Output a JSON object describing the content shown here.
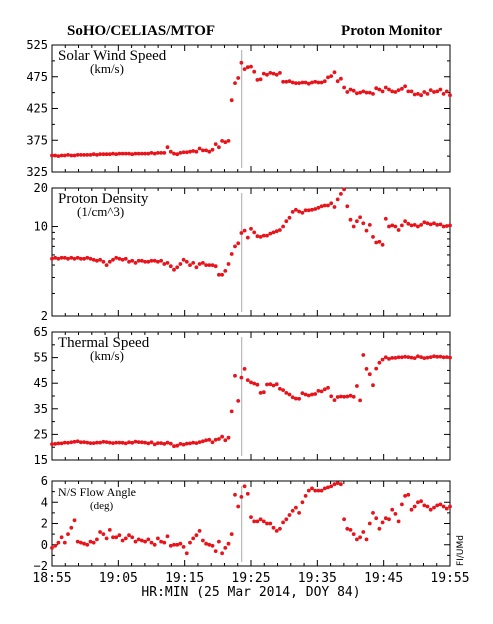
{
  "header": {
    "left_title": "SoHO/CELIAS/MTOF",
    "right_title": "Proton Monitor"
  },
  "side_note": "FI/UMd",
  "colors": {
    "points": "#e8141c",
    "axes": "#000000",
    "event_line": "#aaaaaa"
  },
  "chart_data": [
    {
      "type": "scatter",
      "title": "Solar Wind Speed",
      "unit": "(km/s)",
      "ylim": [
        325,
        525
      ],
      "yticks": [
        "525",
        "475",
        "425",
        "375",
        "325"
      ],
      "x": [
        0,
        1,
        2,
        3,
        4,
        5,
        6,
        7,
        8,
        9,
        10,
        11,
        12,
        13,
        14,
        15,
        16,
        17,
        18,
        19,
        20,
        21,
        22,
        23,
        24,
        25,
        26,
        27,
        28,
        29,
        30,
        31,
        32,
        33,
        34,
        35,
        36,
        37,
        38,
        39,
        40,
        41,
        42,
        43,
        44,
        45,
        46,
        47,
        48,
        49,
        50,
        51,
        52,
        53,
        54,
        55,
        56,
        57,
        58,
        59,
        60,
        61,
        62,
        63,
        64,
        65,
        66,
        67,
        68,
        69,
        70,
        71,
        72,
        73,
        74,
        75,
        76,
        77,
        78,
        79,
        80,
        81,
        82,
        83,
        84,
        85,
        86,
        87,
        88,
        89,
        90,
        91,
        92,
        93,
        94,
        95,
        96,
        97,
        98,
        99,
        100,
        101,
        102,
        103,
        104,
        105,
        106,
        107,
        108,
        109,
        110,
        111,
        112,
        113,
        114,
        115,
        116,
        117,
        118,
        119,
        120,
        121,
        122,
        123,
        124
      ],
      "values": [
        351,
        351,
        350,
        351,
        351,
        352,
        351,
        351,
        352,
        352,
        352,
        352,
        352,
        353,
        352,
        353,
        353,
        353,
        353,
        354,
        353,
        354,
        354,
        354,
        354,
        353,
        354,
        354,
        354,
        354,
        354,
        355,
        354,
        355,
        355,
        355,
        364,
        357,
        354,
        353,
        355,
        356,
        356,
        357,
        358,
        357,
        362,
        359,
        359,
        357,
        360,
        369,
        364,
        374,
        372,
        374,
        438,
        465,
        473,
        497,
        487,
        490,
        491,
        483,
        470,
        471,
        480,
        478,
        481,
        480,
        478,
        481,
        467,
        467,
        468,
        466,
        465,
        465,
        466,
        466,
        464,
        466,
        467,
        466,
        466,
        468,
        474,
        476,
        482,
        468,
        472,
        458,
        451,
        455,
        453,
        449,
        450,
        452,
        450,
        450,
        448,
        457,
        455,
        452,
        458,
        455,
        452,
        451,
        454,
        456,
        460,
        452,
        452,
        447,
        448,
        446,
        451,
        448,
        454,
        451,
        452,
        455,
        448,
        452,
        446
      ],
      "grid": false,
      "xlabel": "",
      "ylabel": ""
    },
    {
      "type": "scatter",
      "title": "Proton Density",
      "unit": "(1/cm^3)",
      "scale": "log",
      "ylim": [
        2,
        20
      ],
      "yticks": [
        "20",
        "10",
        "2"
      ],
      "x": [
        0,
        1,
        2,
        3,
        4,
        5,
        6,
        7,
        8,
        9,
        10,
        11,
        12,
        13,
        14,
        15,
        16,
        17,
        18,
        19,
        20,
        21,
        22,
        23,
        24,
        25,
        26,
        27,
        28,
        29,
        30,
        31,
        32,
        33,
        34,
        35,
        36,
        37,
        38,
        39,
        40,
        41,
        42,
        43,
        44,
        45,
        46,
        47,
        48,
        49,
        50,
        51,
        52,
        53,
        54,
        55,
        56,
        57,
        58,
        59,
        60,
        61,
        62,
        63,
        64,
        65,
        66,
        67,
        68,
        69,
        70,
        71,
        72,
        73,
        74,
        75,
        76,
        77,
        78,
        79,
        80,
        81,
        82,
        83,
        84,
        85,
        86,
        87,
        88,
        89,
        90,
        91,
        92,
        93,
        94,
        95,
        96,
        97,
        98,
        99,
        100,
        101,
        102,
        103,
        104,
        105,
        106,
        107,
        108,
        109,
        110,
        111,
        112,
        113,
        114,
        115,
        116,
        117,
        118,
        119,
        120,
        121,
        122,
        123,
        124
      ],
      "values": [
        5.6,
        5.7,
        5.6,
        5.7,
        5.7,
        5.6,
        5.7,
        5.6,
        5.7,
        5.6,
        5.6,
        5.7,
        5.6,
        5.5,
        5.4,
        5.5,
        5.3,
        5.0,
        5.3,
        5.5,
        5.7,
        5.6,
        5.5,
        5.6,
        5.3,
        5.4,
        5.2,
        5.4,
        5.4,
        5.3,
        5.3,
        5.4,
        5.4,
        5.3,
        5.4,
        5.1,
        5.2,
        4.9,
        4.6,
        4.8,
        5.1,
        5.5,
        5.3,
        5.0,
        5.2,
        4.8,
        5.1,
        5.2,
        5.0,
        5.0,
        5.0,
        4.9,
        4.2,
        4.2,
        4.5,
        5.1,
        6.1,
        7.0,
        7.4,
        8.9,
        9.3,
        8.2,
        9.6,
        9.0,
        8.4,
        8.3,
        8.5,
        8.5,
        8.8,
        9.0,
        9.2,
        9.4,
        10.0,
        11.0,
        11.7,
        13.0,
        13.5,
        13.1,
        12.8,
        13.4,
        13.4,
        13.5,
        13.7,
        14.0,
        14.4,
        14.6,
        14.6,
        15.2,
        14.2,
        16.3,
        18.0,
        19.5,
        14.4,
        11.3,
        10.0,
        11.0,
        11.8,
        10.6,
        9.3,
        10.3,
        8.3,
        7.5,
        7.6,
        7.2,
        11.5,
        10.0,
        10.2,
        10.0,
        9.4,
        10.2,
        11.0,
        10.5,
        10.2,
        10.3,
        10.0,
        10.3,
        10.8,
        10.6,
        10.4,
        10.6,
        10.3,
        10.4,
        10.0,
        10.1,
        10.2
      ],
      "grid": false,
      "xlabel": "",
      "ylabel": ""
    },
    {
      "type": "scatter",
      "title": "Thermal Speed",
      "unit": "(km/s)",
      "ylim": [
        15,
        65
      ],
      "yticks": [
        "65",
        "55",
        "45",
        "35",
        "25",
        "15"
      ],
      "x": [
        0,
        1,
        2,
        3,
        4,
        5,
        6,
        7,
        8,
        9,
        10,
        11,
        12,
        13,
        14,
        15,
        16,
        17,
        18,
        19,
        20,
        21,
        22,
        23,
        24,
        25,
        26,
        27,
        28,
        29,
        30,
        31,
        32,
        33,
        34,
        35,
        36,
        37,
        38,
        39,
        40,
        41,
        42,
        43,
        44,
        45,
        46,
        47,
        48,
        49,
        50,
        51,
        52,
        53,
        54,
        55,
        56,
        57,
        58,
        59,
        60,
        61,
        62,
        63,
        64,
        65,
        66,
        67,
        68,
        69,
        70,
        71,
        72,
        73,
        74,
        75,
        76,
        77,
        78,
        79,
        80,
        81,
        82,
        83,
        84,
        85,
        86,
        87,
        88,
        89,
        90,
        91,
        92,
        93,
        94,
        95,
        96,
        97,
        98,
        99,
        100,
        101,
        102,
        103,
        104,
        105,
        106,
        107,
        108,
        109,
        110,
        111,
        112,
        113,
        114,
        115,
        116,
        117,
        118,
        119,
        120,
        121,
        122,
        123,
        124
      ],
      "values": [
        21.2,
        21.3,
        21.5,
        21.5,
        21.8,
        21.7,
        21.9,
        22.1,
        22.3,
        21.9,
        22.0,
        21.8,
        21.6,
        21.6,
        21.8,
        21.8,
        22.1,
        22.0,
        21.8,
        21.6,
        21.8,
        21.8,
        21.7,
        21.5,
        21.9,
        21.7,
        22.2,
        22.0,
        21.9,
        21.8,
        21.5,
        21.9,
        21.1,
        21.6,
        21.6,
        21.3,
        21.8,
        21.4,
        20.4,
        20.6,
        21.3,
        21.0,
        21.4,
        21.5,
        21.8,
        21.6,
        22.0,
        22.3,
        22.7,
        22.9,
        21.9,
        22.9,
        23.2,
        24.1,
        22.7,
        23.7,
        34.0,
        47.9,
        38.1,
        47.2,
        50.6,
        46.2,
        45.3,
        44.9,
        44.4,
        41.2,
        41.5,
        44.5,
        44.6,
        44.1,
        44.6,
        42.8,
        42.3,
        41.2,
        40.6,
        39.5,
        39.0,
        38.9,
        41.1,
        40.6,
        40.2,
        40.6,
        40.8,
        42.0,
        41.8,
        42.6,
        43.2,
        39.9,
        38.4,
        39.6,
        39.8,
        39.7,
        39.8,
        40.1,
        39.7,
        43.9,
        38.3,
        56.0,
        50.6,
        48.5,
        44.2,
        50.7,
        53.0,
        54.2,
        55.1,
        54.5,
        54.9,
        54.9,
        55.1,
        55.1,
        55.3,
        55.2,
        55.0,
        54.8,
        55.5,
        55.2,
        54.8,
        55.0,
        55.2,
        55.5,
        55.3,
        55.4,
        55.1,
        55.2,
        55.0
      ],
      "grid": false,
      "xlabel": "",
      "ylabel": ""
    },
    {
      "type": "scatter",
      "title": "N/S Flow Angle",
      "unit": "(deg)",
      "ylim": [
        -2,
        6
      ],
      "yticks": [
        "6",
        "4",
        "2",
        "0",
        "−2"
      ],
      "xticks": [
        "18:55",
        "19:05",
        "19:15",
        "19:25",
        "19:35",
        "19:45",
        "19:55"
      ],
      "xlabel": "HR:MIN (25 Mar 2014, DOY 84)",
      "x": [
        0,
        1,
        2,
        3,
        4,
        5,
        6,
        7,
        8,
        9,
        10,
        11,
        12,
        13,
        14,
        15,
        16,
        17,
        18,
        19,
        20,
        21,
        22,
        23,
        24,
        25,
        26,
        27,
        28,
        29,
        30,
        31,
        32,
        33,
        34,
        35,
        36,
        37,
        38,
        39,
        40,
        41,
        42,
        43,
        44,
        45,
        46,
        47,
        48,
        49,
        50,
        51,
        52,
        53,
        54,
        55,
        56,
        57,
        58,
        59,
        60,
        61,
        62,
        63,
        64,
        65,
        66,
        67,
        68,
        69,
        70,
        71,
        72,
        73,
        74,
        75,
        76,
        77,
        78,
        79,
        80,
        81,
        82,
        83,
        84,
        85,
        86,
        87,
        88,
        89,
        90,
        91,
        92,
        93,
        94,
        95,
        96,
        97,
        98,
        99,
        100,
        101,
        102,
        103,
        104,
        105,
        106,
        107,
        108,
        109,
        110,
        111,
        112,
        113,
        114,
        115,
        116,
        117,
        118,
        119,
        120,
        121,
        122,
        123,
        124
      ],
      "values": [
        -0.3,
        -0.1,
        0.2,
        0.7,
        0.2,
        1.0,
        1.6,
        2.3,
        0.3,
        0.2,
        0.1,
        0.0,
        0.3,
        0.2,
        0.5,
        1.2,
        1.0,
        0.6,
        1.4,
        0.7,
        0.7,
        0.9,
        0.4,
        0.6,
        0.9,
        0.7,
        0.3,
        0.5,
        0.4,
        0.3,
        0.5,
        0.2,
        0.0,
        0.6,
        0.3,
        0.2,
        0.8,
        -0.1,
        0.0,
        0.0,
        0.1,
        -0.2,
        -0.8,
        0.2,
        0.6,
        0.9,
        1.3,
        0.4,
        0.1,
        0.0,
        -0.1,
        -0.6,
        0.3,
        -0.8,
        -0.3,
        0.1,
        1.0,
        4.7,
        3.6,
        4.5,
        5.5,
        4.8,
        2.6,
        2.2,
        2.2,
        2.4,
        2.2,
        2.0,
        2.0,
        1.6,
        1.3,
        1.5,
        2.1,
        2.4,
        2.8,
        3.2,
        3.5,
        3.0,
        4.0,
        4.6,
        5.1,
        5.3,
        5.1,
        5.1,
        5.1,
        5.3,
        5.4,
        5.5,
        5.7,
        5.8,
        5.7,
        2.4,
        1.5,
        1.4,
        1.0,
        0.5,
        0.7,
        1.2,
        0.5,
        2.0,
        3.0,
        2.5,
        1.5,
        2.1,
        2.5,
        2.4,
        3.3,
        2.9,
        2.2,
        3.8,
        4.6,
        4.7,
        3.3,
        3.6,
        4.0,
        4.1,
        3.7,
        3.6,
        3.3,
        3.5,
        3.7,
        3.8,
        3.6,
        3.4,
        3.6
      ],
      "grid": false,
      "ylabel": ""
    }
  ]
}
